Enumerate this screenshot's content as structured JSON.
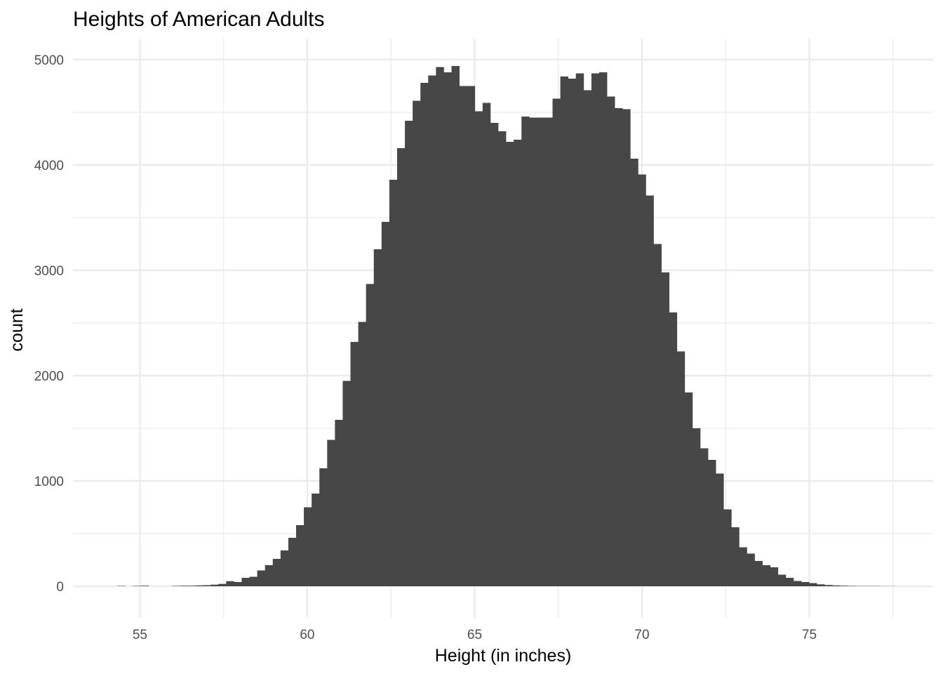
{
  "chart_data": {
    "type": "bar",
    "title": "Heights of American Adults",
    "xlabel": "Height (in inches)",
    "ylabel": "count",
    "xlim": [
      53,
      78.7
    ],
    "ylim": [
      -300,
      5200
    ],
    "x_ticks": [
      55,
      60,
      65,
      70,
      75
    ],
    "x_tick_labels": [
      "55",
      "60",
      "65",
      "70",
      "75"
    ],
    "x_minor_ticks": [
      57.5,
      62.5,
      67.5,
      72.5,
      77.5
    ],
    "y_ticks": [
      0,
      1000,
      2000,
      3000,
      4000,
      5000
    ],
    "y_tick_labels": [
      "0",
      "1000",
      "2000",
      "3000",
      "4000",
      "5000"
    ],
    "y_minor_ticks": [
      500,
      1500,
      2500,
      3500,
      4500
    ],
    "grid": true,
    "bar_color": "#474747",
    "bin_start": 54.325,
    "bin_width": 0.2322,
    "counts": [
      3,
      0,
      3,
      5,
      0,
      0,
      0,
      3,
      5,
      5,
      8,
      10,
      15,
      22,
      48,
      40,
      80,
      90,
      150,
      200,
      260,
      340,
      460,
      580,
      750,
      880,
      1120,
      1390,
      1580,
      1950,
      2320,
      2510,
      2870,
      3200,
      3460,
      3860,
      4160,
      4420,
      4610,
      4780,
      4850,
      4930,
      4880,
      4940,
      4750,
      4750,
      4510,
      4590,
      4400,
      4320,
      4220,
      4240,
      4460,
      4450,
      4450,
      4450,
      4630,
      4840,
      4820,
      4870,
      4710,
      4870,
      4880,
      4650,
      4540,
      4530,
      4060,
      3910,
      3710,
      3250,
      2980,
      2600,
      2230,
      1840,
      1500,
      1310,
      1200,
      1070,
      730,
      560,
      370,
      310,
      240,
      200,
      180,
      110,
      80,
      50,
      40,
      30,
      18,
      12,
      8,
      5,
      3,
      2,
      2,
      2,
      1,
      1
    ]
  }
}
